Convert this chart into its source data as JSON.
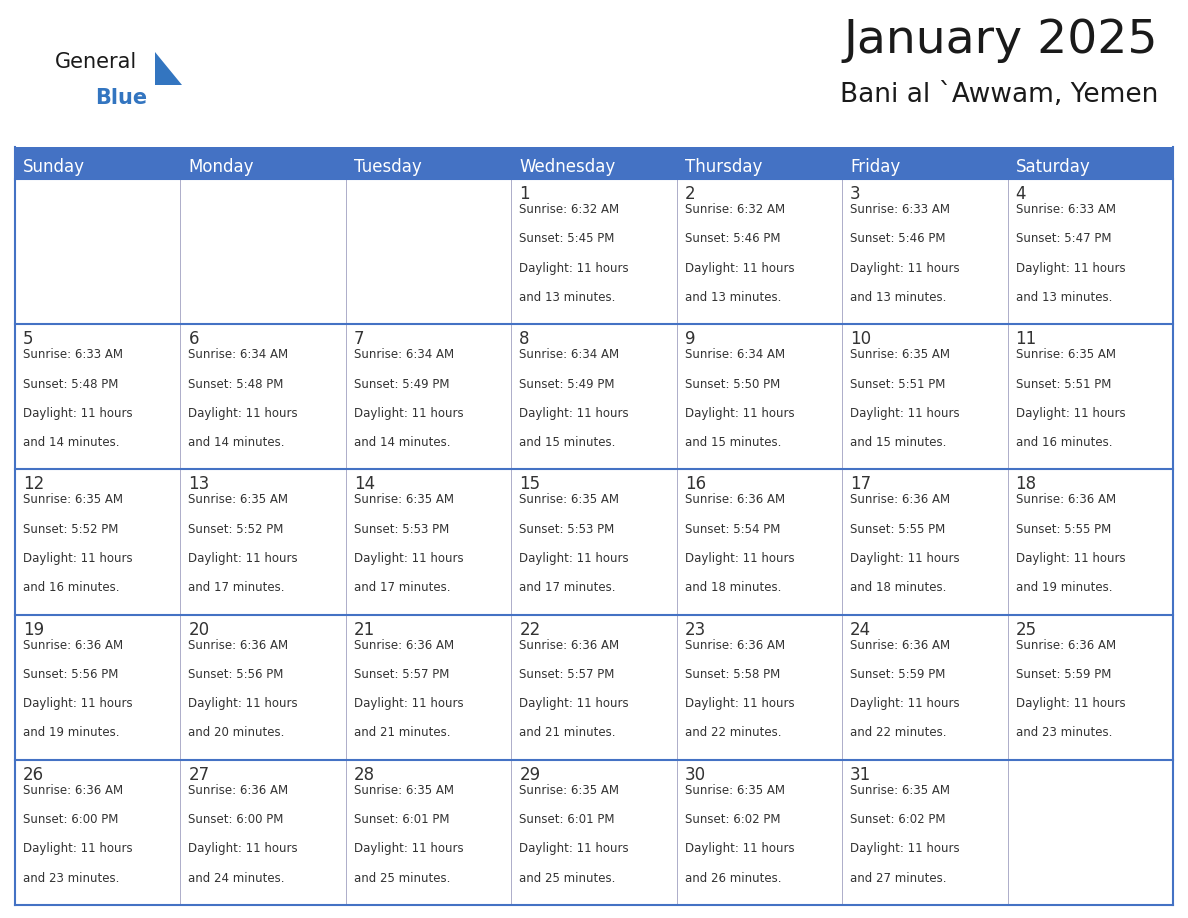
{
  "title": "January 2025",
  "subtitle": "Bani al `Awwam, Yemen",
  "header_color": "#4472C4",
  "header_text_color": "#FFFFFF",
  "cell_bg_color": "#FFFFFF",
  "border_color": "#4472C4",
  "thin_border_color": "#A0A0C0",
  "text_color": "#333333",
  "days_of_week": [
    "Sunday",
    "Monday",
    "Tuesday",
    "Wednesday",
    "Thursday",
    "Friday",
    "Saturday"
  ],
  "weeks": [
    [
      {
        "day": "",
        "sunrise": "",
        "sunset": "",
        "daylight_min": ""
      },
      {
        "day": "",
        "sunrise": "",
        "sunset": "",
        "daylight_min": ""
      },
      {
        "day": "",
        "sunrise": "",
        "sunset": "",
        "daylight_min": ""
      },
      {
        "day": "1",
        "sunrise": "6:32 AM",
        "sunset": "5:45 PM",
        "daylight_min": "13 minutes."
      },
      {
        "day": "2",
        "sunrise": "6:32 AM",
        "sunset": "5:46 PM",
        "daylight_min": "13 minutes."
      },
      {
        "day": "3",
        "sunrise": "6:33 AM",
        "sunset": "5:46 PM",
        "daylight_min": "13 minutes."
      },
      {
        "day": "4",
        "sunrise": "6:33 AM",
        "sunset": "5:47 PM",
        "daylight_min": "13 minutes."
      }
    ],
    [
      {
        "day": "5",
        "sunrise": "6:33 AM",
        "sunset": "5:48 PM",
        "daylight_min": "14 minutes."
      },
      {
        "day": "6",
        "sunrise": "6:34 AM",
        "sunset": "5:48 PM",
        "daylight_min": "14 minutes."
      },
      {
        "day": "7",
        "sunrise": "6:34 AM",
        "sunset": "5:49 PM",
        "daylight_min": "14 minutes."
      },
      {
        "day": "8",
        "sunrise": "6:34 AM",
        "sunset": "5:49 PM",
        "daylight_min": "15 minutes."
      },
      {
        "day": "9",
        "sunrise": "6:34 AM",
        "sunset": "5:50 PM",
        "daylight_min": "15 minutes."
      },
      {
        "day": "10",
        "sunrise": "6:35 AM",
        "sunset": "5:51 PM",
        "daylight_min": "15 minutes."
      },
      {
        "day": "11",
        "sunrise": "6:35 AM",
        "sunset": "5:51 PM",
        "daylight_min": "16 minutes."
      }
    ],
    [
      {
        "day": "12",
        "sunrise": "6:35 AM",
        "sunset": "5:52 PM",
        "daylight_min": "16 minutes."
      },
      {
        "day": "13",
        "sunrise": "6:35 AM",
        "sunset": "5:52 PM",
        "daylight_min": "17 minutes."
      },
      {
        "day": "14",
        "sunrise": "6:35 AM",
        "sunset": "5:53 PM",
        "daylight_min": "17 minutes."
      },
      {
        "day": "15",
        "sunrise": "6:35 AM",
        "sunset": "5:53 PM",
        "daylight_min": "17 minutes."
      },
      {
        "day": "16",
        "sunrise": "6:36 AM",
        "sunset": "5:54 PM",
        "daylight_min": "18 minutes."
      },
      {
        "day": "17",
        "sunrise": "6:36 AM",
        "sunset": "5:55 PM",
        "daylight_min": "18 minutes."
      },
      {
        "day": "18",
        "sunrise": "6:36 AM",
        "sunset": "5:55 PM",
        "daylight_min": "19 minutes."
      }
    ],
    [
      {
        "day": "19",
        "sunrise": "6:36 AM",
        "sunset": "5:56 PM",
        "daylight_min": "19 minutes."
      },
      {
        "day": "20",
        "sunrise": "6:36 AM",
        "sunset": "5:56 PM",
        "daylight_min": "20 minutes."
      },
      {
        "day": "21",
        "sunrise": "6:36 AM",
        "sunset": "5:57 PM",
        "daylight_min": "21 minutes."
      },
      {
        "day": "22",
        "sunrise": "6:36 AM",
        "sunset": "5:57 PM",
        "daylight_min": "21 minutes."
      },
      {
        "day": "23",
        "sunrise": "6:36 AM",
        "sunset": "5:58 PM",
        "daylight_min": "22 minutes."
      },
      {
        "day": "24",
        "sunrise": "6:36 AM",
        "sunset": "5:59 PM",
        "daylight_min": "22 minutes."
      },
      {
        "day": "25",
        "sunrise": "6:36 AM",
        "sunset": "5:59 PM",
        "daylight_min": "23 minutes."
      }
    ],
    [
      {
        "day": "26",
        "sunrise": "6:36 AM",
        "sunset": "6:00 PM",
        "daylight_min": "23 minutes."
      },
      {
        "day": "27",
        "sunrise": "6:36 AM",
        "sunset": "6:00 PM",
        "daylight_min": "24 minutes."
      },
      {
        "day": "28",
        "sunrise": "6:35 AM",
        "sunset": "6:01 PM",
        "daylight_min": "25 minutes."
      },
      {
        "day": "29",
        "sunrise": "6:35 AM",
        "sunset": "6:01 PM",
        "daylight_min": "25 minutes."
      },
      {
        "day": "30",
        "sunrise": "6:35 AM",
        "sunset": "6:02 PM",
        "daylight_min": "26 minutes."
      },
      {
        "day": "31",
        "sunrise": "6:35 AM",
        "sunset": "6:02 PM",
        "daylight_min": "27 minutes."
      },
      {
        "day": "",
        "sunrise": "",
        "sunset": "",
        "daylight_min": ""
      }
    ]
  ],
  "general_color": "#1a1a1a",
  "blue_color": "#3375C0",
  "triangle_color": "#3375C0",
  "title_fontsize": 34,
  "subtitle_fontsize": 19,
  "header_fontsize": 12,
  "day_num_fontsize": 12,
  "cell_text_fontsize": 8.5
}
